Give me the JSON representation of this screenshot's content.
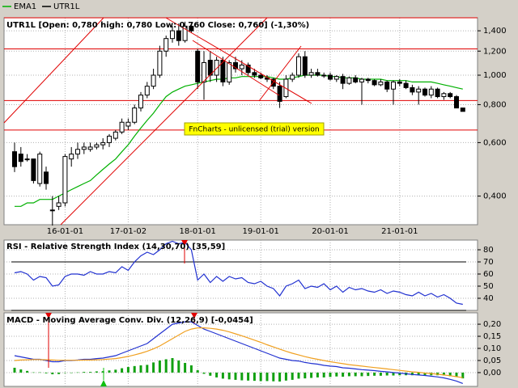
{
  "chart_data": [
    {
      "type": "candlestick",
      "title": "UTR1L [Open: 0,780  high: 0,780  Low: 0,760  Close: 0,760] (-1,30%)",
      "name": "UTR1L",
      "color": "#000000",
      "annotation": "FnCharts - unlicensed (trial) version",
      "log": true,
      "grid": true,
      "categories": [
        null,
        null,
        null,
        null,
        null,
        null,
        null,
        null,
        "16-01-01",
        null,
        null,
        null,
        null,
        null,
        null,
        null,
        null,
        null,
        "17-01-02",
        null,
        null,
        null,
        null,
        null,
        null,
        null,
        null,
        null,
        null,
        "18-01-01",
        null,
        null,
        null,
        null,
        null,
        null,
        null,
        null,
        null,
        "19-01-01",
        null,
        null,
        null,
        null,
        null,
        null,
        null,
        null,
        null,
        null,
        "20-01-01",
        null,
        null,
        null,
        null,
        null,
        null,
        null,
        null,
        null,
        null,
        "21-01-01",
        null,
        null,
        null,
        null,
        null,
        null,
        null,
        null,
        null,
        null
      ],
      "open": [
        0.56,
        0.55,
        0.53,
        0.53,
        0.44,
        0.48,
        0.36,
        0.37,
        0.38,
        0.53,
        0.55,
        0.57,
        0.57,
        0.58,
        0.59,
        0.6,
        0.62,
        0.65,
        0.68,
        0.7,
        0.78,
        0.86,
        0.92,
        1.0,
        1.2,
        1.32,
        1.4,
        1.3,
        1.45,
        1.2,
        0.95,
        1.12,
        1.0,
        1.12,
        0.95,
        1.1,
        1.05,
        1.08,
        1.02,
        1.0,
        0.98,
        0.97,
        0.92,
        0.85,
        0.97,
        1.0,
        1.15,
        1.0,
        1.02,
        1.0,
        1.0,
        0.97,
        0.99,
        0.94,
        0.98,
        0.95,
        0.97,
        0.96,
        0.93,
        0.95,
        0.9,
        0.95,
        0.94,
        0.91,
        0.88,
        0.9,
        0.86,
        0.9,
        0.85,
        0.87,
        0.85,
        0.78
      ],
      "high": [
        0.6,
        0.58,
        0.55,
        0.53,
        0.56,
        0.5,
        0.4,
        0.4,
        0.55,
        0.58,
        0.6,
        0.6,
        0.6,
        0.6,
        0.62,
        0.64,
        0.66,
        0.72,
        0.72,
        0.8,
        0.88,
        0.95,
        1.05,
        1.25,
        1.35,
        1.45,
        1.48,
        1.5,
        1.46,
        1.22,
        1.2,
        1.2,
        1.15,
        1.15,
        1.12,
        1.15,
        1.12,
        1.1,
        1.05,
        1.02,
        1.0,
        0.98,
        0.95,
        1.0,
        1.02,
        1.18,
        1.2,
        1.05,
        1.05,
        1.02,
        1.02,
        1.0,
        1.01,
        0.99,
        1.0,
        0.98,
        0.98,
        0.97,
        0.97,
        0.96,
        0.96,
        0.97,
        0.96,
        0.93,
        0.92,
        0.91,
        0.92,
        0.91,
        0.88,
        0.88,
        0.86,
        0.78
      ],
      "low": [
        0.48,
        0.5,
        0.52,
        0.44,
        0.43,
        0.42,
        0.32,
        0.36,
        0.37,
        0.5,
        0.53,
        0.55,
        0.56,
        0.57,
        0.57,
        0.58,
        0.61,
        0.64,
        0.66,
        0.69,
        0.76,
        0.84,
        0.9,
        0.98,
        1.15,
        1.28,
        1.25,
        1.28,
        1.38,
        0.9,
        0.83,
        0.95,
        0.95,
        0.92,
        0.93,
        1.02,
        1.0,
        1.0,
        0.98,
        0.97,
        0.95,
        0.9,
        0.78,
        0.84,
        0.95,
        0.98,
        0.98,
        0.98,
        0.99,
        0.98,
        0.96,
        0.95,
        0.9,
        0.93,
        0.94,
        0.8,
        0.94,
        0.92,
        0.92,
        0.88,
        0.8,
        0.92,
        0.9,
        0.86,
        0.8,
        0.85,
        0.84,
        0.84,
        0.83,
        0.84,
        0.78,
        0.76
      ],
      "close": [
        0.5,
        0.52,
        0.53,
        0.45,
        0.55,
        0.44,
        0.36,
        0.38,
        0.54,
        0.55,
        0.57,
        0.58,
        0.58,
        0.59,
        0.6,
        0.63,
        0.65,
        0.7,
        0.7,
        0.78,
        0.86,
        0.92,
        1.0,
        1.2,
        1.32,
        1.4,
        1.3,
        1.45,
        1.4,
        0.95,
        1.1,
        1.0,
        1.12,
        0.95,
        1.1,
        1.05,
        1.08,
        1.02,
        1.0,
        0.98,
        0.97,
        0.92,
        0.82,
        0.97,
        1.0,
        1.15,
        1.0,
        1.02,
        1.0,
        1.0,
        0.97,
        0.99,
        0.94,
        0.98,
        0.95,
        0.97,
        0.96,
        0.93,
        0.95,
        0.9,
        0.95,
        0.94,
        0.91,
        0.88,
        0.9,
        0.86,
        0.9,
        0.85,
        0.87,
        0.85,
        0.78,
        0.76
      ],
      "series": [
        {
          "name": "EMA1",
          "color": "#00b000",
          "values": [
            0.37,
            0.37,
            0.38,
            0.38,
            0.39,
            0.39,
            0.39,
            0.4,
            0.41,
            0.42,
            0.43,
            0.44,
            0.45,
            0.47,
            0.49,
            0.51,
            0.53,
            0.56,
            0.59,
            0.63,
            0.67,
            0.71,
            0.75,
            0.8,
            0.85,
            0.88,
            0.9,
            0.92,
            0.93,
            0.94,
            0.95,
            0.96,
            0.97,
            0.97,
            0.98,
            0.98,
            0.99,
            0.99,
            0.99,
            0.99,
            0.99,
            0.98,
            0.97,
            0.97,
            0.98,
            0.99,
            1.0,
            1.0,
            1.0,
            1.0,
            0.99,
            0.99,
            0.98,
            0.98,
            0.98,
            0.97,
            0.97,
            0.97,
            0.97,
            0.96,
            0.96,
            0.96,
            0.96,
            0.95,
            0.95,
            0.95,
            0.95,
            0.94,
            0.93,
            0.92,
            0.91,
            0.9
          ]
        }
      ],
      "hlines": [
        1.22,
        0.825,
        0.66
      ],
      "hline_color": "#e00000",
      "ylim": [
        0.322,
        1.545
      ],
      "yticks": [
        {
          "value": 1.4,
          "label": "1,400"
        },
        {
          "value": 1.2,
          "label": "1,200"
        },
        {
          "value": 1.0,
          "label": "1,000"
        },
        {
          "value": 0.8,
          "label": "0,800"
        },
        {
          "value": 0.6,
          "label": "0,600"
        },
        {
          "value": 0.4,
          "label": "0,400"
        }
      ]
    },
    {
      "type": "line",
      "title": "RSI - Relative Strength Index (14,30,70) [35,59]",
      "grid": true,
      "series": [
        {
          "color": "#2030d0",
          "values": [
            61,
            62,
            60,
            55,
            58,
            57,
            50,
            51,
            58,
            60,
            60,
            59,
            62,
            60,
            60,
            62,
            61,
            66,
            63,
            70,
            75,
            78,
            76,
            80,
            85,
            87,
            85,
            86,
            80,
            55,
            60,
            53,
            58,
            54,
            58,
            56,
            57,
            53,
            52,
            54,
            50,
            48,
            42,
            50,
            52,
            55,
            48,
            50,
            49,
            52,
            47,
            50,
            45,
            49,
            47,
            48,
            46,
            45,
            47,
            44,
            46,
            45,
            43,
            42,
            45,
            42,
            44,
            41,
            43,
            40,
            36,
            35
          ]
        }
      ],
      "levels": [
        70,
        30
      ],
      "ylim": [
        30,
        88
      ],
      "yticks": [
        80,
        70,
        60,
        50,
        40
      ]
    },
    {
      "type": "macd",
      "title": "MACD - Moving Average Conv. Div. (12,26,9) [-0,0454]",
      "grid": true,
      "series": [
        {
          "color": "#2030d0",
          "values": [
            0.07,
            0.065,
            0.06,
            0.055,
            0.055,
            0.05,
            0.045,
            0.045,
            0.05,
            0.05,
            0.052,
            0.055,
            0.055,
            0.058,
            0.06,
            0.065,
            0.07,
            0.08,
            0.09,
            0.1,
            0.11,
            0.12,
            0.14,
            0.16,
            0.18,
            0.2,
            0.205,
            0.21,
            0.21,
            0.195,
            0.18,
            0.17,
            0.16,
            0.15,
            0.14,
            0.13,
            0.12,
            0.11,
            0.1,
            0.09,
            0.08,
            0.07,
            0.06,
            0.055,
            0.05,
            0.048,
            0.042,
            0.038,
            0.035,
            0.03,
            0.027,
            0.025,
            0.02,
            0.018,
            0.015,
            0.012,
            0.01,
            0.008,
            0.005,
            0.003,
            0,
            -0.002,
            -0.005,
            -0.008,
            -0.01,
            -0.012,
            -0.015,
            -0.018,
            -0.022,
            -0.028,
            -0.035,
            -0.045
          ]
        },
        {
          "color": "#f0a020",
          "values": [
            0.05,
            0.052,
            0.053,
            0.054,
            0.054,
            0.053,
            0.052,
            0.051,
            0.051,
            0.051,
            0.051,
            0.052,
            0.052,
            0.053,
            0.054,
            0.056,
            0.058,
            0.062,
            0.067,
            0.073,
            0.08,
            0.088,
            0.098,
            0.11,
            0.125,
            0.14,
            0.155,
            0.17,
            0.18,
            0.185,
            0.185,
            0.183,
            0.18,
            0.175,
            0.168,
            0.16,
            0.152,
            0.143,
            0.134,
            0.125,
            0.115,
            0.106,
            0.097,
            0.088,
            0.08,
            0.073,
            0.066,
            0.06,
            0.055,
            0.05,
            0.045,
            0.041,
            0.037,
            0.033,
            0.03,
            0.027,
            0.024,
            0.021,
            0.018,
            0.015,
            0.012,
            0.009,
            0.006,
            0.003,
            0.001,
            -0.002,
            -0.004,
            -0.007,
            -0.01,
            -0.013,
            -0.017,
            -0.021
          ]
        }
      ],
      "histogram": {
        "color": "#10a010",
        "values": [
          0.02,
          0.013,
          0.007,
          0.001,
          0.001,
          -0.003,
          -0.007,
          -0.006,
          -0.001,
          -0.001,
          0.001,
          0.003,
          0.003,
          0.005,
          0.006,
          0.009,
          0.012,
          0.018,
          0.023,
          0.027,
          0.03,
          0.032,
          0.042,
          0.05,
          0.055,
          0.06,
          0.05,
          0.04,
          0.03,
          0.01,
          -0.005,
          -0.013,
          -0.02,
          -0.025,
          -0.028,
          -0.03,
          -0.032,
          -0.033,
          -0.034,
          -0.035,
          -0.035,
          -0.036,
          -0.037,
          -0.033,
          -0.03,
          -0.025,
          -0.024,
          -0.022,
          -0.02,
          -0.02,
          -0.018,
          -0.016,
          -0.017,
          -0.015,
          -0.015,
          -0.015,
          -0.014,
          -0.013,
          -0.013,
          -0.012,
          -0.012,
          -0.011,
          -0.011,
          -0.011,
          -0.011,
          -0.01,
          -0.011,
          -0.011,
          -0.012,
          -0.015,
          -0.018,
          -0.024
        ]
      },
      "ylim": [
        -0.057,
        0.247
      ],
      "yticks": [
        {
          "value": 0.2,
          "label": "0,20"
        },
        {
          "value": 0.15,
          "label": "0,15"
        },
        {
          "value": 0.1,
          "label": "0,10"
        },
        {
          "value": 0.05,
          "label": "0,05"
        },
        {
          "value": 0,
          "label": "0,00"
        }
      ]
    }
  ]
}
